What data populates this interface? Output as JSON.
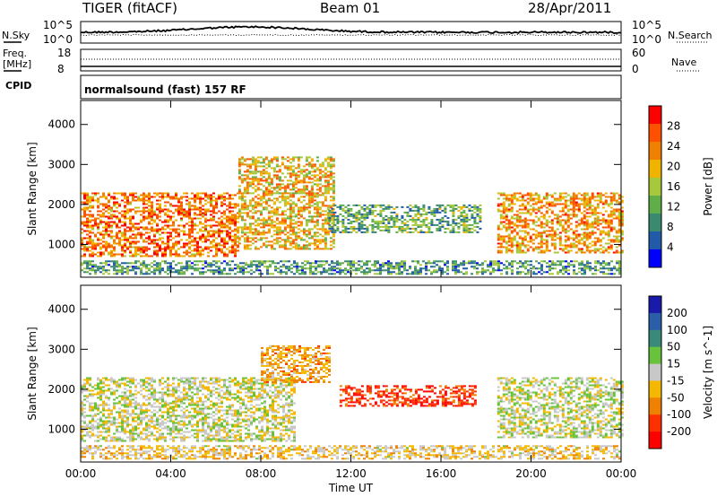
{
  "header": {
    "radar": "TIGER (fitACF)",
    "beam": "Beam 01",
    "date": "28/Apr/2011"
  },
  "status_panel": {
    "left_labels": {
      "nsky": "N.Sky",
      "freq": "Freq.",
      "freq_unit": "[MHz]",
      "cpid": "CPID"
    },
    "right_labels": {
      "nsearch": "N.Search",
      "nave": "Nave"
    },
    "noise_ticks_left": [
      "10^5",
      "10^0"
    ],
    "noise_ticks_right": [
      "10^5",
      "10^0"
    ],
    "freq_ticks": [
      "18",
      "8"
    ],
    "nave_ticks": [
      "60",
      "0"
    ],
    "program": "normalsound (fast) 157 RF"
  },
  "colors": {
    "power": [
      "#0000ff",
      "#205aa8",
      "#3a8a70",
      "#5fae4a",
      "#a6c83a",
      "#f0b400",
      "#f08000",
      "#ff5000",
      "#ff0000"
    ],
    "velocity": [
      "#1a1aaa",
      "#2a5ea8",
      "#3a8a7a",
      "#69c23c",
      "#c8c8c8",
      "#f5b800",
      "#f08000",
      "#ff3000",
      "#ff0000"
    ]
  },
  "chart_data": [
    {
      "type": "heatmap",
      "name": "power",
      "xlabel": "",
      "ylabel": "Slant Range [km]",
      "x_ticks": [
        "00:00",
        "04:00",
        "08:00",
        "12:00",
        "16:00",
        "20:00",
        "00:00"
      ],
      "x_hours": [
        0,
        24
      ],
      "ylim": [
        180,
        4600
      ],
      "y_ticks": [
        1000,
        2000,
        3000,
        4000
      ],
      "colorbar": {
        "label": "Power [dB]",
        "range": [
          0,
          32
        ],
        "ticks": [
          4,
          8,
          12,
          16,
          20,
          24,
          28
        ]
      },
      "echo_regions": [
        {
          "x": [
            0.0,
            7.0
          ],
          "y": [
            700,
            2300
          ],
          "level": 24
        },
        {
          "x": [
            7.0,
            11.2
          ],
          "y": [
            900,
            3200
          ],
          "level": 20
        },
        {
          "x": [
            11.0,
            17.8
          ],
          "y": [
            1300,
            2000
          ],
          "level": 12
        },
        {
          "x": [
            18.5,
            24.0
          ],
          "y": [
            800,
            2300
          ],
          "level": 22
        },
        {
          "x": [
            0.0,
            24.0
          ],
          "y": [
            250,
            600
          ],
          "level": 10
        }
      ]
    },
    {
      "type": "heatmap",
      "name": "velocity",
      "xlabel": "Time UT",
      "ylabel": "Slant Range [km]",
      "x_ticks": [
        "00:00",
        "04:00",
        "08:00",
        "12:00",
        "16:00",
        "20:00",
        "00:00"
      ],
      "x_hours": [
        0,
        24
      ],
      "ylim": [
        180,
        4600
      ],
      "y_ticks": [
        1000,
        2000,
        3000,
        4000
      ],
      "colorbar": {
        "label": "Velocity [m s^-1]",
        "range": [
          -250,
          250
        ],
        "ticks": [
          200,
          100,
          50,
          15,
          -15,
          -50,
          -100,
          -200
        ]
      },
      "echo_regions": [
        {
          "x": [
            0.0,
            9.5
          ],
          "y": [
            700,
            2300
          ],
          "level": 0
        },
        {
          "x": [
            11.5,
            17.5
          ],
          "y": [
            1600,
            2100
          ],
          "level": -180
        },
        {
          "x": [
            18.5,
            24.0
          ],
          "y": [
            800,
            2300
          ],
          "level": 5
        },
        {
          "x": [
            8.0,
            11.0
          ],
          "y": [
            2200,
            3100
          ],
          "level": -80
        },
        {
          "x": [
            0.0,
            24.0
          ],
          "y": [
            250,
            600
          ],
          "level": -40
        }
      ]
    }
  ]
}
